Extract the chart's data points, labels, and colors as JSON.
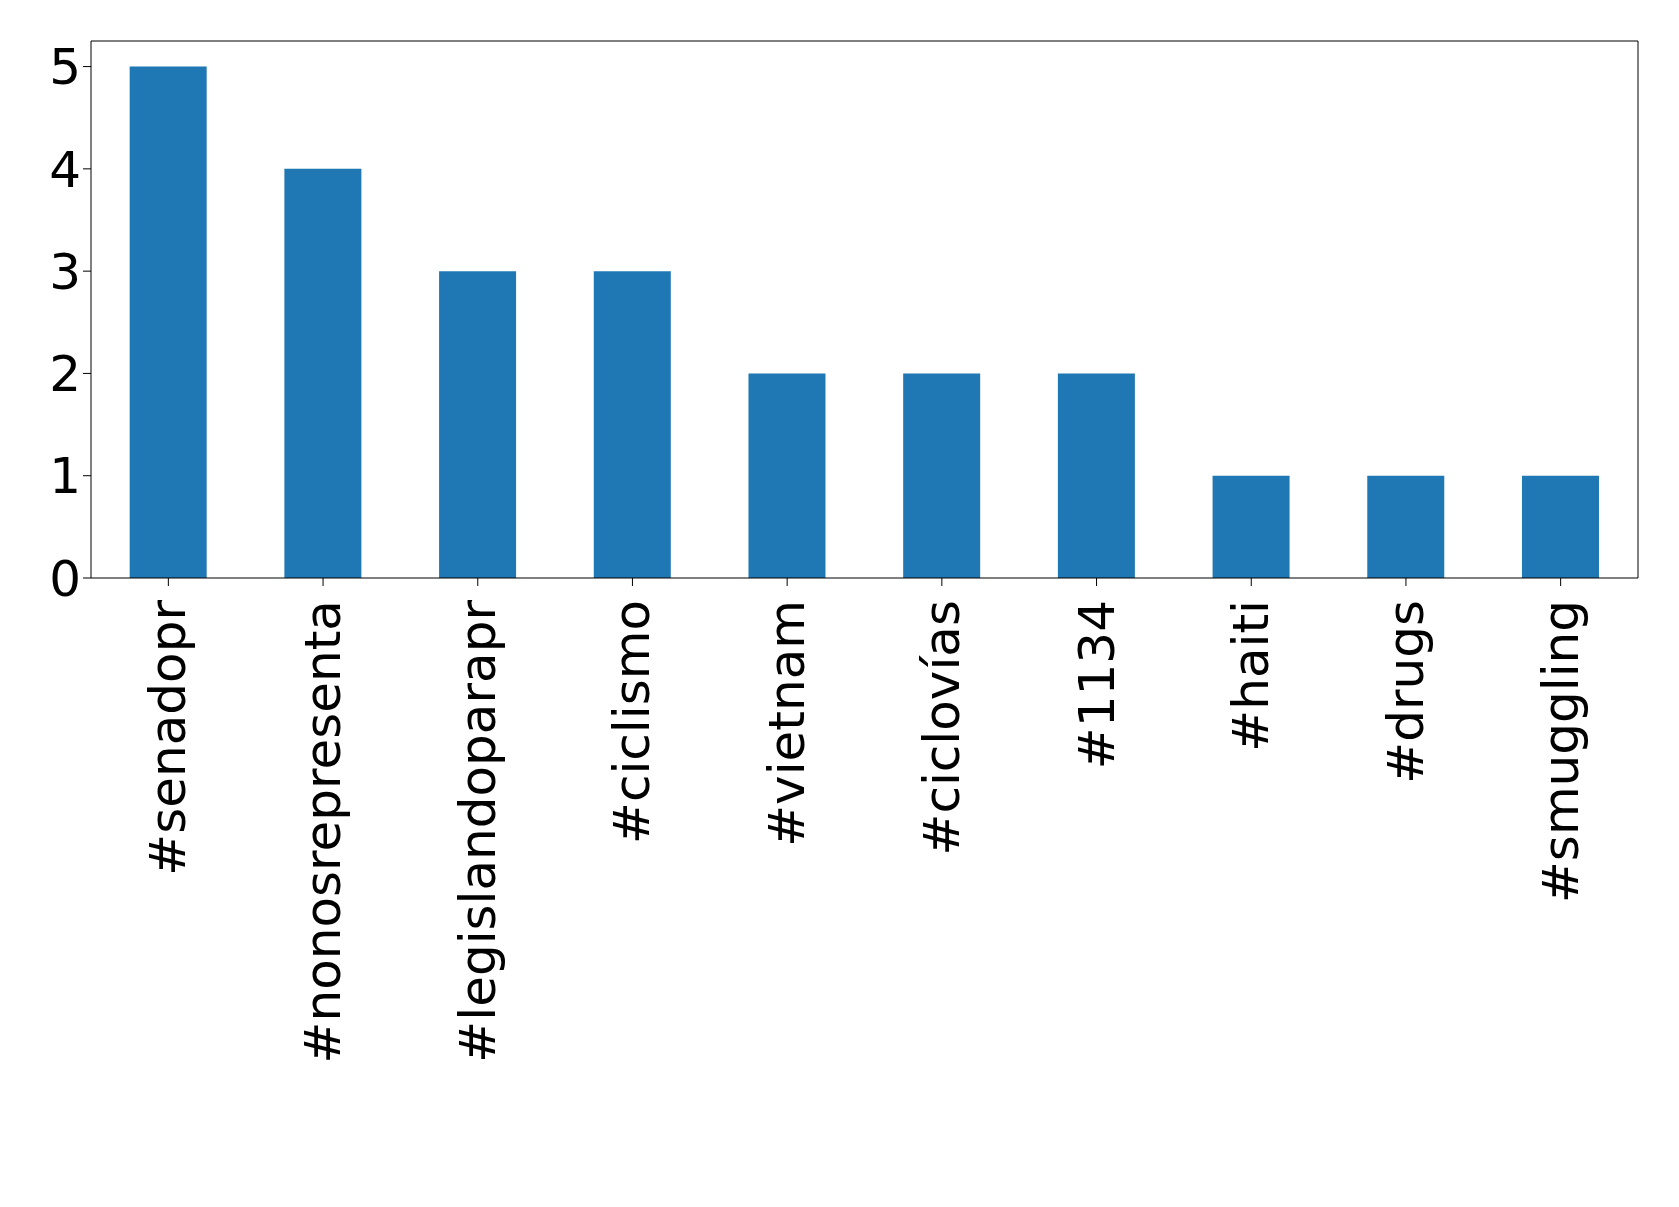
{
  "chart_data": {
    "type": "bar",
    "categories": [
      "#senadopr",
      "#nonosrepresenta",
      "#legislandoparapr",
      "#ciclismo",
      "#vietnam",
      "#ciclovías",
      "#1134",
      "#haiti",
      "#drugs",
      "#smuggling"
    ],
    "values": [
      5,
      4,
      3,
      3,
      2,
      2,
      2,
      1,
      1,
      1
    ],
    "color": "#1f77b4",
    "ylim": [
      0,
      5.25
    ],
    "yticks": [
      0,
      1,
      2,
      3,
      4,
      5
    ],
    "grid": false,
    "legend": false
  }
}
